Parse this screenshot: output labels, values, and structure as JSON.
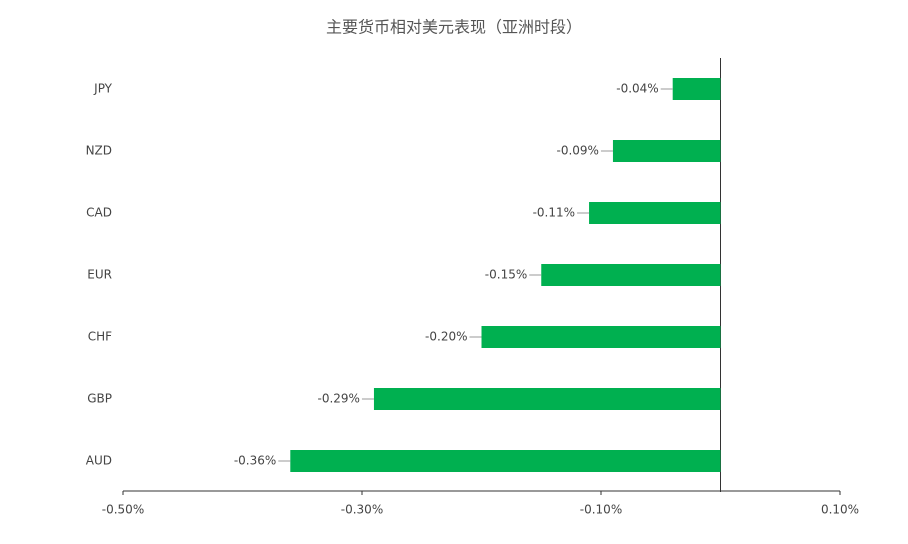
{
  "chart_data": {
    "type": "bar",
    "orientation": "horizontal",
    "title": "主要货币相对美元表现（亚洲时段）",
    "categories": [
      "JPY",
      "NZD",
      "CAD",
      "EUR",
      "CHF",
      "GBP",
      "AUD"
    ],
    "values": [
      -0.04,
      -0.09,
      -0.11,
      -0.15,
      -0.2,
      -0.29,
      -0.36
    ],
    "value_labels": [
      "-0.04%",
      "-0.09%",
      "-0.11%",
      "-0.15%",
      "-0.20%",
      "-0.29%",
      "-0.36%"
    ],
    "color": "#00b050",
    "xlim": [
      -0.5,
      0.1
    ],
    "xticks": [
      {
        "value": -0.5,
        "label": "-0.50%"
      },
      {
        "value": -0.3,
        "label": "-0.30%"
      },
      {
        "value": -0.1,
        "label": "-0.10%"
      },
      {
        "value": 0.1,
        "label": "0.10%"
      }
    ],
    "grid": false
  }
}
